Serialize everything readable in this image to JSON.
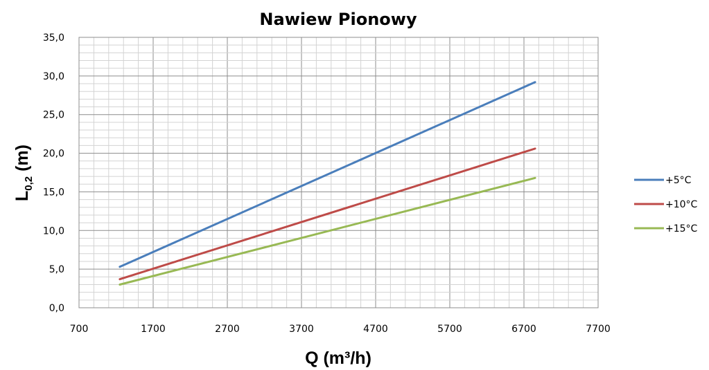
{
  "chart_data": {
    "type": "line",
    "title": "Nawiew Pionowy",
    "xlabel": "Q (m³/h)",
    "ylabel": "L",
    "ylabel_sub": "0,2",
    "ylabel_suffix": " (m)",
    "xlim": [
      700,
      7700
    ],
    "ylim": [
      0,
      35
    ],
    "x_ticks": [
      700,
      1700,
      2700,
      3700,
      4700,
      5700,
      6700,
      7700
    ],
    "x_tick_labels": [
      "700",
      "1700",
      "2700",
      "3700",
      "4700",
      "5700",
      "6700",
      "7700"
    ],
    "y_ticks": [
      0,
      5,
      10,
      15,
      20,
      25,
      30,
      35
    ],
    "y_tick_labels": [
      "0,0",
      "5,0",
      "10,0",
      "15,0",
      "20,0",
      "25,0",
      "30,0",
      "35,0"
    ],
    "x_minor_step": 200,
    "y_minor_step": 1,
    "grid": true,
    "legend_position": "right",
    "series": [
      {
        "name": "+5°C",
        "color": "#4a7ebb",
        "x": [
          1250,
          6850
        ],
        "y": [
          5.3,
          29.2
        ]
      },
      {
        "name": "+10°C",
        "color": "#be4b48",
        "x": [
          1250,
          6850
        ],
        "y": [
          3.7,
          20.6
        ]
      },
      {
        "name": "+15°C",
        "color": "#98b954",
        "x": [
          1250,
          6850
        ],
        "y": [
          3.0,
          16.8
        ]
      }
    ]
  }
}
